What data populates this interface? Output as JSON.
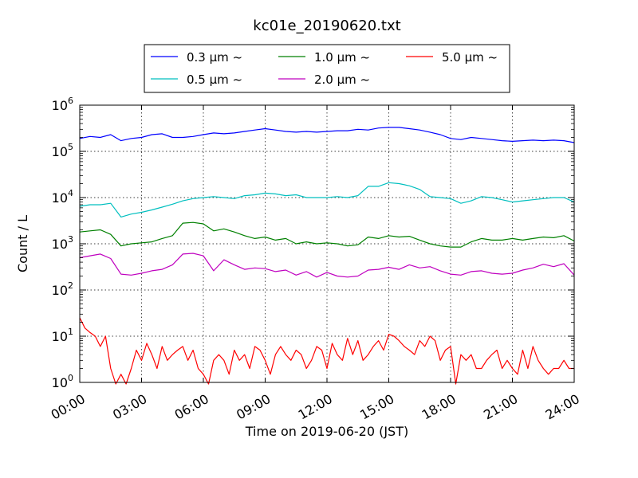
{
  "chart_data": {
    "type": "line",
    "title": "kc01e_20190620.txt",
    "xlabel": "Time on 2019-06-20 (JST)",
    "ylabel": "Count / L",
    "x_ticks": [
      "00:00",
      "03:00",
      "06:00",
      "09:00",
      "12:00",
      "15:00",
      "18:00",
      "21:00",
      "24:00"
    ],
    "y_tick_exponents": [
      "0",
      "1",
      "2",
      "3",
      "4",
      "5",
      "6"
    ],
    "y_tick_base": "10",
    "xlim_hours": [
      0,
      24
    ],
    "ylim": [
      1,
      1000000
    ],
    "yscale": "log",
    "grid": true,
    "legend_placement": "top-center, above plot",
    "x_unit": "hours since 00:00",
    "series": [
      {
        "name": "0.3 μm ~",
        "color": "#0000ff",
        "x": [
          0,
          0.5,
          1,
          1.5,
          2,
          2.5,
          3,
          3.5,
          4,
          4.5,
          5,
          5.5,
          6,
          6.5,
          7,
          7.5,
          8,
          8.5,
          9,
          9.5,
          10,
          10.5,
          11,
          11.5,
          12,
          12.5,
          13,
          13.5,
          14,
          14.5,
          15,
          15.5,
          16,
          16.5,
          17,
          17.5,
          18,
          18.5,
          19,
          19.5,
          20,
          20.5,
          21,
          21.5,
          22,
          22.5,
          23,
          23.5,
          24
        ],
        "values": [
          190000,
          210000,
          200000,
          230000,
          170000,
          190000,
          200000,
          230000,
          240000,
          200000,
          200000,
          210000,
          230000,
          250000,
          240000,
          250000,
          270000,
          290000,
          310000,
          290000,
          270000,
          260000,
          270000,
          260000,
          270000,
          280000,
          280000,
          300000,
          290000,
          320000,
          330000,
          330000,
          310000,
          290000,
          260000,
          230000,
          190000,
          180000,
          200000,
          190000,
          180000,
          170000,
          165000,
          170000,
          175000,
          170000,
          175000,
          170000,
          155000
        ]
      },
      {
        "name": "0.5 μm ~",
        "color": "#00bfbf",
        "x": [
          0,
          0.5,
          1,
          1.5,
          2,
          2.5,
          3,
          3.5,
          4,
          4.5,
          5,
          5.5,
          6,
          6.5,
          7,
          7.5,
          8,
          8.5,
          9,
          9.5,
          10,
          10.5,
          11,
          11.5,
          12,
          12.5,
          13,
          13.5,
          14,
          14.5,
          15,
          15.5,
          16,
          16.5,
          17,
          17.5,
          18,
          18.5,
          19,
          19.5,
          20,
          20.5,
          21,
          21.5,
          22,
          22.5,
          23,
          23.5,
          24
        ],
        "values": [
          6500,
          7000,
          7000,
          7500,
          3800,
          4400,
          4800,
          5400,
          6200,
          7200,
          8500,
          9500,
          10000,
          10500,
          10000,
          9500,
          11000,
          11500,
          12500,
          12000,
          11000,
          11500,
          10000,
          10000,
          10000,
          10500,
          10000,
          11000,
          17500,
          17500,
          21000,
          20000,
          18000,
          15000,
          10500,
          10000,
          9500,
          7500,
          8500,
          10500,
          10000,
          9000,
          8000,
          8500,
          9000,
          9500,
          10000,
          10000,
          8000
        ]
      },
      {
        "name": "1.0 μm ~",
        "color": "#008000",
        "x": [
          0,
          0.5,
          1,
          1.5,
          2,
          2.5,
          3,
          3.5,
          4,
          4.5,
          5,
          5.5,
          6,
          6.5,
          7,
          7.5,
          8,
          8.5,
          9,
          9.5,
          10,
          10.5,
          11,
          11.5,
          12,
          12.5,
          13,
          13.5,
          14,
          14.5,
          15,
          15.5,
          16,
          16.5,
          17,
          17.5,
          18,
          18.5,
          19,
          19.5,
          20,
          20.5,
          21,
          21.5,
          22,
          22.5,
          23,
          23.5,
          24
        ],
        "values": [
          1800,
          1900,
          2000,
          1600,
          900,
          1000,
          1050,
          1100,
          1300,
          1500,
          2800,
          2900,
          2700,
          1900,
          2100,
          1800,
          1500,
          1300,
          1400,
          1200,
          1300,
          1000,
          1100,
          1000,
          1050,
          1000,
          900,
          950,
          1400,
          1300,
          1500,
          1400,
          1450,
          1200,
          1000,
          900,
          850,
          850,
          1100,
          1300,
          1200,
          1200,
          1300,
          1200,
          1300,
          1400,
          1350,
          1500,
          1150
        ]
      },
      {
        "name": "2.0 μm ~",
        "color": "#bf00bf",
        "x": [
          0,
          0.5,
          1,
          1.5,
          2,
          2.5,
          3,
          3.5,
          4,
          4.5,
          5,
          5.5,
          6,
          6.5,
          7,
          7.5,
          8,
          8.5,
          9,
          9.5,
          10,
          10.5,
          11,
          11.5,
          12,
          12.5,
          13,
          13.5,
          14,
          14.5,
          15,
          15.5,
          16,
          16.5,
          17,
          17.5,
          18,
          18.5,
          19,
          19.5,
          20,
          20.5,
          21,
          21.5,
          22,
          22.5,
          23,
          23.5,
          24
        ],
        "values": [
          500,
          550,
          600,
          480,
          220,
          210,
          230,
          260,
          280,
          350,
          600,
          620,
          550,
          260,
          450,
          350,
          280,
          300,
          290,
          250,
          270,
          210,
          250,
          190,
          240,
          200,
          190,
          200,
          270,
          280,
          310,
          280,
          350,
          300,
          320,
          260,
          220,
          210,
          250,
          260,
          230,
          220,
          230,
          270,
          300,
          360,
          320,
          370,
          210
        ]
      },
      {
        "name": "5.0 μm ~",
        "color": "#ff0000",
        "x": [
          0,
          0.25,
          0.5,
          0.75,
          1,
          1.25,
          1.5,
          1.75,
          2,
          2.25,
          2.5,
          2.75,
          3,
          3.25,
          3.5,
          3.75,
          4,
          4.25,
          4.5,
          4.75,
          5,
          5.25,
          5.5,
          5.75,
          6,
          6.25,
          6.5,
          6.75,
          7,
          7.25,
          7.5,
          7.75,
          8,
          8.25,
          8.5,
          8.75,
          9,
          9.25,
          9.5,
          9.75,
          10,
          10.25,
          10.5,
          10.75,
          11,
          11.25,
          11.5,
          11.75,
          12,
          12.25,
          12.5,
          12.75,
          13,
          13.25,
          13.5,
          13.75,
          14,
          14.25,
          14.5,
          14.75,
          15,
          15.25,
          15.5,
          15.75,
          16,
          16.25,
          16.5,
          16.75,
          17,
          17.25,
          17.5,
          17.75,
          18,
          18.25,
          18.5,
          18.75,
          19,
          19.25,
          19.5,
          19.75,
          20,
          20.25,
          20.5,
          20.75,
          21,
          21.25,
          21.5,
          21.75,
          22,
          22.25,
          22.5,
          22.75,
          23,
          23.25,
          23.5,
          23.75,
          24
        ],
        "values": [
          25,
          15,
          12,
          10,
          6,
          10,
          2,
          0.9,
          1.5,
          0.9,
          2,
          5,
          3,
          7,
          4,
          2,
          6,
          3,
          4,
          5,
          6,
          3,
          5,
          2,
          1.5,
          0.9,
          3,
          4,
          3,
          1.5,
          5,
          3,
          4,
          2,
          6,
          5,
          3,
          1.5,
          4,
          6,
          4,
          3,
          5,
          4,
          2,
          3,
          6,
          5,
          2,
          7,
          4,
          3,
          9,
          4,
          8,
          3,
          4,
          6,
          8,
          5,
          11,
          10,
          8,
          6,
          5,
          4,
          8,
          6,
          10,
          8,
          3,
          5,
          6,
          0.9,
          4,
          3,
          4,
          2,
          2,
          3,
          4,
          5,
          2,
          3,
          2,
          1.5,
          5,
          2,
          6,
          3,
          2,
          1.5,
          2,
          2,
          3,
          2,
          2
        ]
      }
    ]
  }
}
